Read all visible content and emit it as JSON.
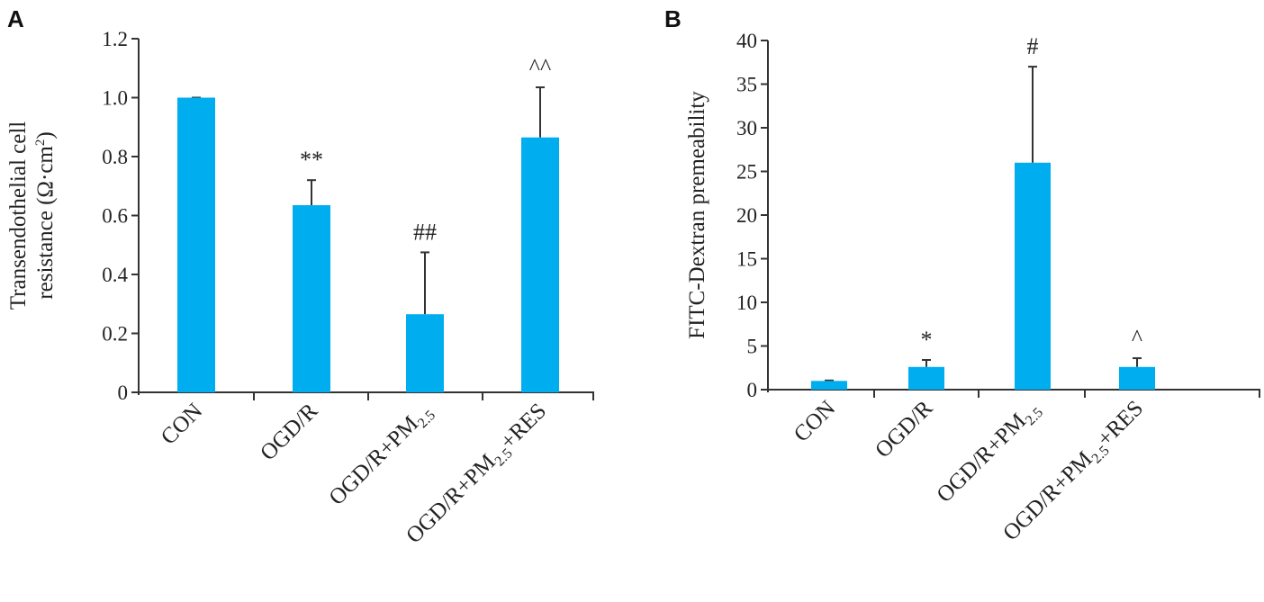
{
  "chart_data": [
    {
      "panel": "A",
      "type": "bar",
      "ylabel_line1": "Transendothelial cell",
      "ylabel_line2": "resistance (Ω·cm",
      "ylabel_sup": "2",
      "ylabel_close": ")",
      "categories": [
        {
          "main": "CON",
          "sub": "",
          "tail": ""
        },
        {
          "main": "OGD/R",
          "sub": "",
          "tail": ""
        },
        {
          "main": "OGD/R+PM",
          "sub": "2.5",
          "tail": ""
        },
        {
          "main": "OGD/R+PM",
          "sub": "2.5",
          "tail": "+RES"
        }
      ],
      "values": [
        1.0,
        0.635,
        0.265,
        0.865
      ],
      "error_upper": [
        1.0,
        0.72,
        0.475,
        1.035
      ],
      "annotations": [
        "",
        "**",
        "##",
        "^^"
      ],
      "ylim": [
        0,
        1.2
      ],
      "yticks": [
        0,
        0.2,
        0.4,
        0.6,
        0.8,
        1.0,
        1.2
      ],
      "ytick_labels": [
        "0",
        "0.2",
        "0.4",
        "0.6",
        "0.8",
        "1.0",
        "1.2"
      ],
      "bar_color": "#00AEEF"
    },
    {
      "panel": "B",
      "type": "bar",
      "ylabel_line1": "FITC-Dextran premeability",
      "categories": [
        {
          "main": "CON",
          "sub": "",
          "tail": ""
        },
        {
          "main": "OGD/R",
          "sub": "",
          "tail": ""
        },
        {
          "main": "OGD/R+PM",
          "sub": "2.5",
          "tail": ""
        },
        {
          "main": "OGD/R+PM",
          "sub": "2.5",
          "tail": "+RES"
        }
      ],
      "values": [
        1.0,
        2.6,
        26.0,
        2.6
      ],
      "error_upper": [
        1.05,
        3.4,
        37.0,
        3.6
      ],
      "annotations": [
        "",
        "*",
        "#",
        "^"
      ],
      "ylim": [
        0,
        40
      ],
      "yticks": [
        0,
        5,
        10,
        15,
        20,
        25,
        30,
        35,
        40
      ],
      "ytick_labels": [
        "0",
        "5",
        "10",
        "15",
        "20",
        "25",
        "30",
        "35",
        "40"
      ],
      "bar_color": "#00AEEF"
    }
  ]
}
